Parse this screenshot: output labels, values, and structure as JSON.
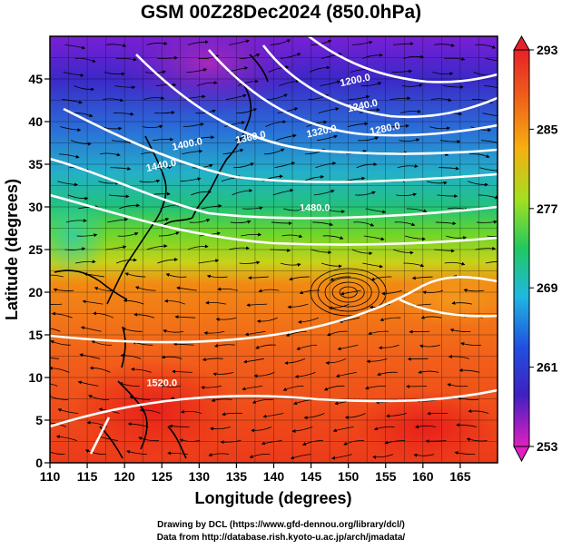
{
  "title": "GSM 00Z28Dec2024 (850.0hPa)",
  "x_axis": {
    "label": "Longitude (degrees)",
    "range": [
      110,
      170
    ],
    "ticks": [
      "110",
      "115",
      "120",
      "125",
      "130",
      "135",
      "140",
      "145",
      "150",
      "155",
      "160",
      "165"
    ]
  },
  "y_axis": {
    "label": "Latitude  (degrees)",
    "range": [
      0,
      50
    ],
    "ticks": [
      "0",
      "5",
      "10",
      "15",
      "20",
      "25",
      "30",
      "35",
      "40",
      "45"
    ]
  },
  "colorbar": {
    "min": 253,
    "max": 293,
    "ticks": [
      "293",
      "285",
      "277",
      "269",
      "261",
      "253"
    ]
  },
  "contours": [
    {
      "value": "1200.0",
      "lon": 151,
      "lat": 44.5
    },
    {
      "value": "1240.0",
      "lon": 152,
      "lat": 41.5
    },
    {
      "value": "1280.0",
      "lon": 155,
      "lat": 38.8
    },
    {
      "value": "1320.0",
      "lon": 146.5,
      "lat": 38.5
    },
    {
      "value": "1360.0",
      "lon": 137,
      "lat": 37.8
    },
    {
      "value": "1400.0",
      "lon": 128.5,
      "lat": 37.0
    },
    {
      "value": "1440.0",
      "lon": 125,
      "lat": 34.5
    },
    {
      "value": "1480.0",
      "lon": 145.5,
      "lat": 29.5
    },
    {
      "value": "1520.0",
      "lon": 125,
      "lat": 9.0
    }
  ],
  "credits": {
    "line1": "Drawing by DCL (https://www.gfd-dennou.org/library/dcl/)",
    "line2": "Data from http://database.rish.kyoto-u.ac.jp/arch/jmadata/"
  }
}
